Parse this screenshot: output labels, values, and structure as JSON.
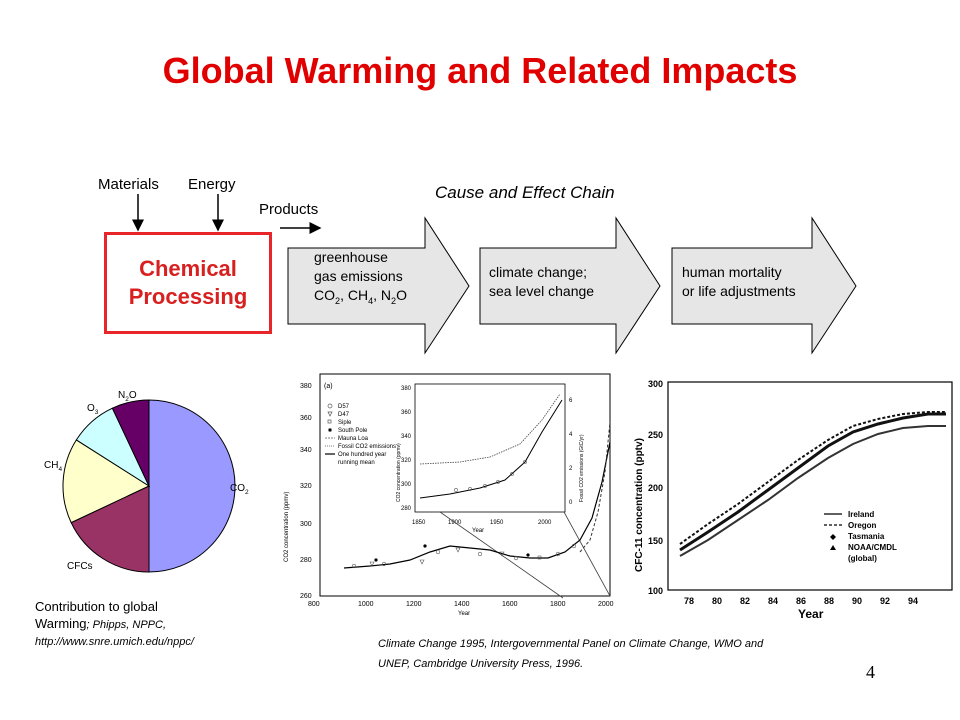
{
  "title": "Global Warming and Related Impacts",
  "inputs": {
    "materials": "Materials",
    "energy": "Energy",
    "products": "Products"
  },
  "process": {
    "line1": "Chemical",
    "line2": "Processing"
  },
  "chain": {
    "heading": "Cause and Effect Chain",
    "step1": {
      "line1": "greenhouse",
      "line2": "gas emissions",
      "line3_prefix": "CO",
      "sub1": "2",
      "sep1": ", CH",
      "sub2": "4",
      "sep2": ", N",
      "sub3": "2",
      "suffix": "O"
    },
    "step2": {
      "line1": "climate change;",
      "line2": "sea level change"
    },
    "step3": {
      "line1": "human mortality",
      "line2": "or life adjustments"
    }
  },
  "pie": {
    "slices": [
      {
        "name": "CO2",
        "label_main": "CO",
        "label_sub": "2",
        "fraction": 0.5,
        "color": "#9999ff"
      },
      {
        "name": "CFCs",
        "label_main": "CFCs",
        "label_sub": "",
        "fraction": 0.18,
        "color": "#993366"
      },
      {
        "name": "CH4",
        "label_main": "CH",
        "label_sub": "4",
        "fraction": 0.16,
        "color": "#ffffcc"
      },
      {
        "name": "O3",
        "label_main": "O",
        "label_sub": "3",
        "fraction": 0.09,
        "color": "#ccffff"
      },
      {
        "name": "N2O",
        "label_main": "N",
        "label_sub": "2",
        "label_suffix": "O",
        "fraction": 0.07,
        "color": "#660066"
      }
    ]
  },
  "caption_left": {
    "line1": "Contribution to global",
    "line2_a": "Warming",
    "line2_b": "; Phipps, NPPC,",
    "line3": "http://www.snre.umich.edu/nppc/"
  },
  "co2_chart": {
    "panel": "(a)",
    "ylabel": "CO2 concentration (ppmv)",
    "xlabel": "Year",
    "yticks": [
      "380",
      "360",
      "340",
      "320",
      "300",
      "280",
      "260"
    ],
    "xticks": [
      "800",
      "1000",
      "1200",
      "1400",
      "1600",
      "1800",
      "2000"
    ],
    "legend": [
      "D57",
      "D47",
      "Siple",
      "South Pole",
      "Mauna Loa",
      "Fossil CO2 emissions",
      "One hundred year",
      "running mean"
    ],
    "inset": {
      "xticks": [
        "1850",
        "1900",
        "1950",
        "2000"
      ],
      "xlabel": "Year",
      "yticks": [
        "380",
        "360",
        "340",
        "320",
        "300",
        "280"
      ],
      "ylabel_left": "CO2 concentration (ppmv)",
      "ylabel_right": "Fossil CO2 emissions (GtC/yr)",
      "rticks": [
        "6",
        "4",
        "2",
        "0"
      ]
    }
  },
  "cfc_chart": {
    "ylabel": "CFC-11 concentration (pptv)",
    "xlabel": "Year",
    "yticks": [
      "300",
      "250",
      "200",
      "150",
      "100"
    ],
    "xticks": [
      "78",
      "80",
      "82",
      "84",
      "86",
      "88",
      "90",
      "92",
      "94"
    ],
    "legend": [
      "Ireland",
      "Oregon",
      "Tasmania",
      "NOAA/CMDL",
      "(global)"
    ]
  },
  "caption_bottom": {
    "line1": "Climate Change 1995, Intergovernmental Panel on Climate Change, WMO and",
    "line2": "UNEP, Cambridge University Press, 1996."
  },
  "page_number": "4"
}
